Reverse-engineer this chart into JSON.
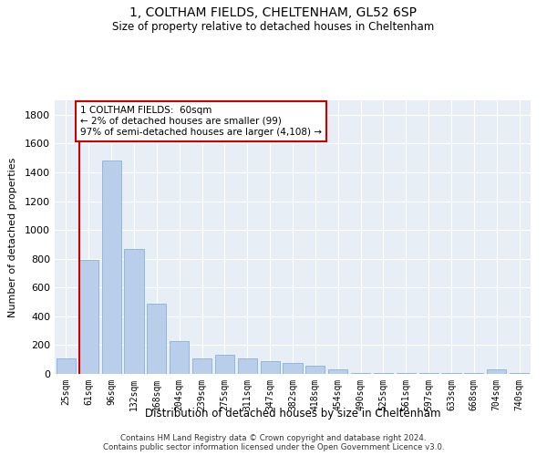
{
  "title1": "1, COLTHAM FIELDS, CHELTENHAM, GL52 6SP",
  "title2": "Size of property relative to detached houses in Cheltenham",
  "xlabel": "Distribution of detached houses by size in Cheltenham",
  "ylabel": "Number of detached properties",
  "categories": [
    "25sqm",
    "61sqm",
    "96sqm",
    "132sqm",
    "168sqm",
    "204sqm",
    "239sqm",
    "275sqm",
    "311sqm",
    "347sqm",
    "382sqm",
    "418sqm",
    "454sqm",
    "490sqm",
    "525sqm",
    "561sqm",
    "597sqm",
    "633sqm",
    "668sqm",
    "704sqm",
    "740sqm"
  ],
  "values": [
    110,
    790,
    1480,
    870,
    490,
    230,
    110,
    130,
    105,
    90,
    75,
    55,
    30,
    5,
    5,
    5,
    5,
    5,
    5,
    30,
    5
  ],
  "bar_color": "#b8ceea",
  "bar_edge_color": "#7aaace",
  "highlight_index": 1,
  "annotation_box_text": "1 COLTHAM FIELDS:  60sqm\n← 2% of detached houses are smaller (99)\n97% of semi-detached houses are larger (4,108) →",
  "annotation_box_color": "#ffffff",
  "annotation_box_edge_color": "#cc0000",
  "annotation_text_fontsize": 7.5,
  "ylim": [
    0,
    1900
  ],
  "yticks": [
    0,
    200,
    400,
    600,
    800,
    1000,
    1200,
    1400,
    1600,
    1800
  ],
  "footnote": "Contains HM Land Registry data © Crown copyright and database right 2024.\nContains public sector information licensed under the Open Government Licence v3.0.",
  "background_color": "#ffffff",
  "plot_bg_color": "#e8eef5"
}
